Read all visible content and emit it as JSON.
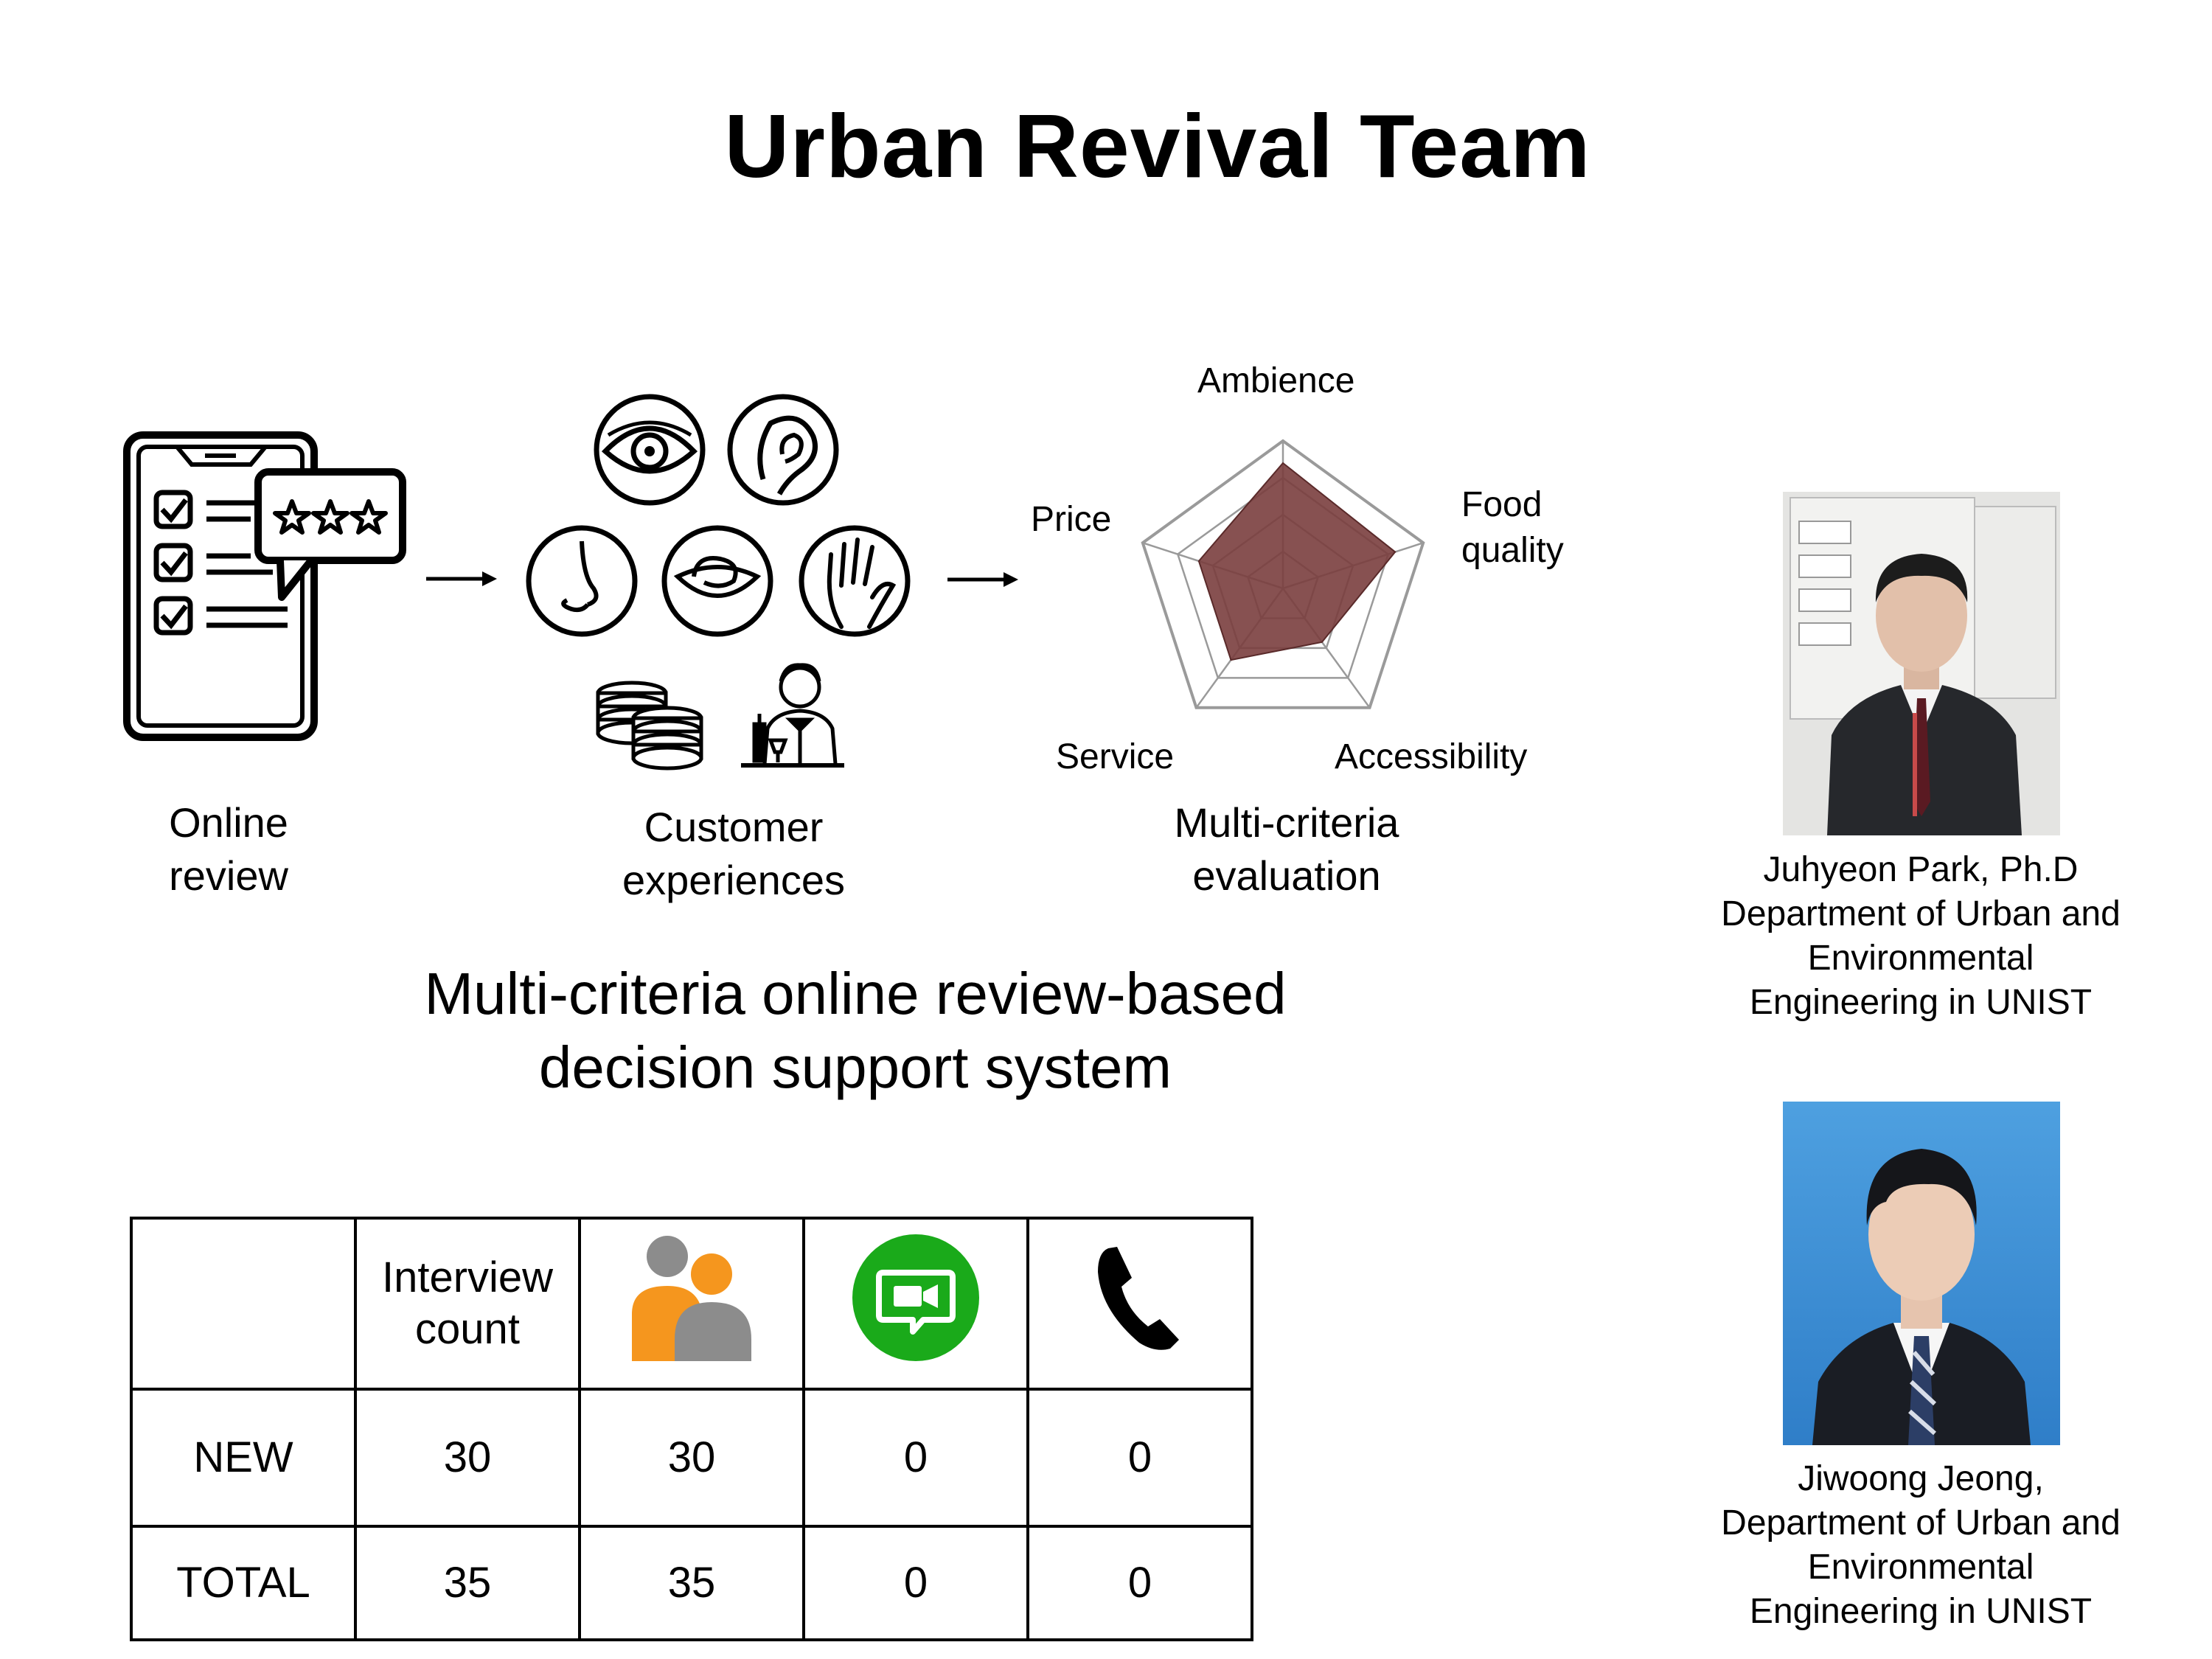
{
  "header": {
    "title": "Urban Revival Team"
  },
  "flow": {
    "step1": {
      "line1": "Online",
      "line2": "review"
    },
    "step2": {
      "line1": "Customer",
      "line2": "experiences"
    },
    "step3": {
      "line1": "Multi-criteria",
      "line2": "evaluation"
    }
  },
  "radar": {
    "labels": {
      "ambience": "Ambience",
      "food1": "Food",
      "food2": "quality",
      "accessibility": "Accessibility",
      "service": "Service",
      "price": "Price"
    },
    "fill_color": "#7a3e3e"
  },
  "chart_data": {
    "type": "radar",
    "categories": [
      "Ambience",
      "Food quality",
      "Accessibility",
      "Service",
      "Price"
    ],
    "values": [
      0.85,
      0.8,
      0.45,
      0.6,
      0.6
    ],
    "rings": 4
  },
  "subtitle": {
    "line1": "Multi-criteria online review-based",
    "line2": "decision support system"
  },
  "table": {
    "header": {
      "col1_line1": "Interview",
      "col1_line2": "count"
    },
    "icons": [
      "people-icon",
      "video-chat-icon",
      "phone-icon"
    ],
    "rows": [
      {
        "label": "NEW",
        "values": [
          "30",
          "30",
          "0",
          "0"
        ]
      },
      {
        "label": "TOTAL",
        "values": [
          "35",
          "35",
          "0",
          "0"
        ]
      }
    ],
    "colors": {
      "orange": "#f5961e",
      "gray": "#8c8c8c",
      "green": "#1aaa1a"
    }
  },
  "people": [
    {
      "line1": "Juhyeon Park, Ph.D",
      "line2": "Department of Urban and",
      "line3": "Environmental",
      "line4": "Engineering in UNIST"
    },
    {
      "line1": "Jiwoong Jeong,",
      "line2": "Department of Urban and",
      "line3": "Environmental",
      "line4": "Engineering in UNIST"
    }
  ]
}
